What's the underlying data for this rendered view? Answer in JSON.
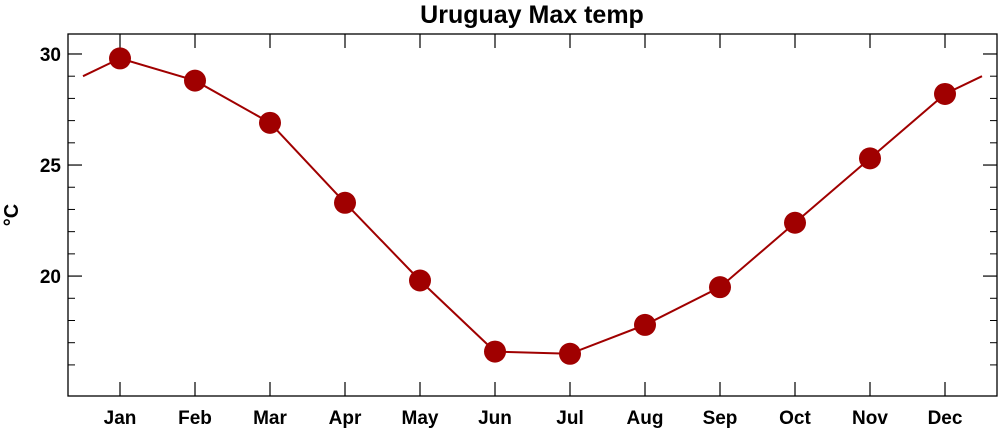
{
  "chart_data": {
    "type": "line",
    "title": "Uruguay Max temp",
    "ylabel": "°C",
    "xlabel": "",
    "categories": [
      "Jan",
      "Feb",
      "Mar",
      "Apr",
      "May",
      "Jun",
      "Jul",
      "Aug",
      "Sep",
      "Oct",
      "Nov",
      "Dec"
    ],
    "series": [
      {
        "values": [
          29.8,
          28.8,
          26.9,
          23.3,
          19.8,
          16.6,
          16.5,
          17.8,
          19.5,
          22.4,
          25.3,
          28.2
        ]
      }
    ],
    "wrap_values": {
      "left": 29.0,
      "right": 29.0
    },
    "ylim": [
      14.6,
      30.9
    ],
    "yticks_major": [
      20,
      25,
      30
    ],
    "yticks_minor": [
      16,
      17,
      18,
      19,
      21,
      22,
      23,
      24,
      26,
      27,
      28,
      29
    ],
    "grid": false,
    "legend": "none",
    "colors": {
      "line": "#a00000",
      "marker": "#a00000",
      "axes": "#000000"
    }
  }
}
